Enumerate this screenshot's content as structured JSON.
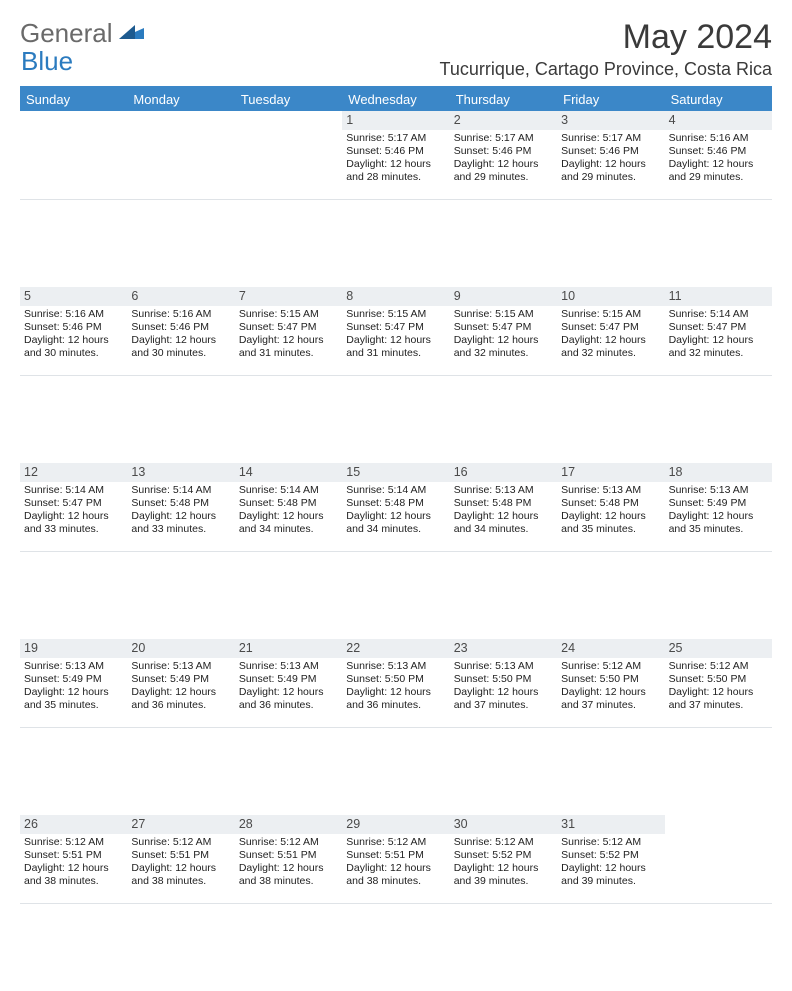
{
  "brand": {
    "part1": "General",
    "part2": "Blue"
  },
  "title": "May 2024",
  "location": "Tucurrique, Cartago Province, Costa Rica",
  "styling": {
    "header_bg": "#3b87c8",
    "header_fg": "#ffffff",
    "daynum_bg": "#eceff2",
    "page_bg": "#ffffff",
    "text_color": "#222222",
    "title_fontsize": 34,
    "location_fontsize": 18,
    "dayhead_fontsize": 13,
    "cell_fontsize": 10.5
  },
  "day_headers": [
    "Sunday",
    "Monday",
    "Tuesday",
    "Wednesday",
    "Thursday",
    "Friday",
    "Saturday"
  ],
  "weeks": [
    [
      {
        "n": "",
        "l1": "",
        "l2": "",
        "l3": "",
        "l4": ""
      },
      {
        "n": "",
        "l1": "",
        "l2": "",
        "l3": "",
        "l4": ""
      },
      {
        "n": "",
        "l1": "",
        "l2": "",
        "l3": "",
        "l4": ""
      },
      {
        "n": "1",
        "l1": "Sunrise: 5:17 AM",
        "l2": "Sunset: 5:46 PM",
        "l3": "Daylight: 12 hours",
        "l4": "and 28 minutes."
      },
      {
        "n": "2",
        "l1": "Sunrise: 5:17 AM",
        "l2": "Sunset: 5:46 PM",
        "l3": "Daylight: 12 hours",
        "l4": "and 29 minutes."
      },
      {
        "n": "3",
        "l1": "Sunrise: 5:17 AM",
        "l2": "Sunset: 5:46 PM",
        "l3": "Daylight: 12 hours",
        "l4": "and 29 minutes."
      },
      {
        "n": "4",
        "l1": "Sunrise: 5:16 AM",
        "l2": "Sunset: 5:46 PM",
        "l3": "Daylight: 12 hours",
        "l4": "and 29 minutes."
      }
    ],
    [
      {
        "n": "5",
        "l1": "Sunrise: 5:16 AM",
        "l2": "Sunset: 5:46 PM",
        "l3": "Daylight: 12 hours",
        "l4": "and 30 minutes."
      },
      {
        "n": "6",
        "l1": "Sunrise: 5:16 AM",
        "l2": "Sunset: 5:46 PM",
        "l3": "Daylight: 12 hours",
        "l4": "and 30 minutes."
      },
      {
        "n": "7",
        "l1": "Sunrise: 5:15 AM",
        "l2": "Sunset: 5:47 PM",
        "l3": "Daylight: 12 hours",
        "l4": "and 31 minutes."
      },
      {
        "n": "8",
        "l1": "Sunrise: 5:15 AM",
        "l2": "Sunset: 5:47 PM",
        "l3": "Daylight: 12 hours",
        "l4": "and 31 minutes."
      },
      {
        "n": "9",
        "l1": "Sunrise: 5:15 AM",
        "l2": "Sunset: 5:47 PM",
        "l3": "Daylight: 12 hours",
        "l4": "and 32 minutes."
      },
      {
        "n": "10",
        "l1": "Sunrise: 5:15 AM",
        "l2": "Sunset: 5:47 PM",
        "l3": "Daylight: 12 hours",
        "l4": "and 32 minutes."
      },
      {
        "n": "11",
        "l1": "Sunrise: 5:14 AM",
        "l2": "Sunset: 5:47 PM",
        "l3": "Daylight: 12 hours",
        "l4": "and 32 minutes."
      }
    ],
    [
      {
        "n": "12",
        "l1": "Sunrise: 5:14 AM",
        "l2": "Sunset: 5:47 PM",
        "l3": "Daylight: 12 hours",
        "l4": "and 33 minutes."
      },
      {
        "n": "13",
        "l1": "Sunrise: 5:14 AM",
        "l2": "Sunset: 5:48 PM",
        "l3": "Daylight: 12 hours",
        "l4": "and 33 minutes."
      },
      {
        "n": "14",
        "l1": "Sunrise: 5:14 AM",
        "l2": "Sunset: 5:48 PM",
        "l3": "Daylight: 12 hours",
        "l4": "and 34 minutes."
      },
      {
        "n": "15",
        "l1": "Sunrise: 5:14 AM",
        "l2": "Sunset: 5:48 PM",
        "l3": "Daylight: 12 hours",
        "l4": "and 34 minutes."
      },
      {
        "n": "16",
        "l1": "Sunrise: 5:13 AM",
        "l2": "Sunset: 5:48 PM",
        "l3": "Daylight: 12 hours",
        "l4": "and 34 minutes."
      },
      {
        "n": "17",
        "l1": "Sunrise: 5:13 AM",
        "l2": "Sunset: 5:48 PM",
        "l3": "Daylight: 12 hours",
        "l4": "and 35 minutes."
      },
      {
        "n": "18",
        "l1": "Sunrise: 5:13 AM",
        "l2": "Sunset: 5:49 PM",
        "l3": "Daylight: 12 hours",
        "l4": "and 35 minutes."
      }
    ],
    [
      {
        "n": "19",
        "l1": "Sunrise: 5:13 AM",
        "l2": "Sunset: 5:49 PM",
        "l3": "Daylight: 12 hours",
        "l4": "and 35 minutes."
      },
      {
        "n": "20",
        "l1": "Sunrise: 5:13 AM",
        "l2": "Sunset: 5:49 PM",
        "l3": "Daylight: 12 hours",
        "l4": "and 36 minutes."
      },
      {
        "n": "21",
        "l1": "Sunrise: 5:13 AM",
        "l2": "Sunset: 5:49 PM",
        "l3": "Daylight: 12 hours",
        "l4": "and 36 minutes."
      },
      {
        "n": "22",
        "l1": "Sunrise: 5:13 AM",
        "l2": "Sunset: 5:50 PM",
        "l3": "Daylight: 12 hours",
        "l4": "and 36 minutes."
      },
      {
        "n": "23",
        "l1": "Sunrise: 5:13 AM",
        "l2": "Sunset: 5:50 PM",
        "l3": "Daylight: 12 hours",
        "l4": "and 37 minutes."
      },
      {
        "n": "24",
        "l1": "Sunrise: 5:12 AM",
        "l2": "Sunset: 5:50 PM",
        "l3": "Daylight: 12 hours",
        "l4": "and 37 minutes."
      },
      {
        "n": "25",
        "l1": "Sunrise: 5:12 AM",
        "l2": "Sunset: 5:50 PM",
        "l3": "Daylight: 12 hours",
        "l4": "and 37 minutes."
      }
    ],
    [
      {
        "n": "26",
        "l1": "Sunrise: 5:12 AM",
        "l2": "Sunset: 5:51 PM",
        "l3": "Daylight: 12 hours",
        "l4": "and 38 minutes."
      },
      {
        "n": "27",
        "l1": "Sunrise: 5:12 AM",
        "l2": "Sunset: 5:51 PM",
        "l3": "Daylight: 12 hours",
        "l4": "and 38 minutes."
      },
      {
        "n": "28",
        "l1": "Sunrise: 5:12 AM",
        "l2": "Sunset: 5:51 PM",
        "l3": "Daylight: 12 hours",
        "l4": "and 38 minutes."
      },
      {
        "n": "29",
        "l1": "Sunrise: 5:12 AM",
        "l2": "Sunset: 5:51 PM",
        "l3": "Daylight: 12 hours",
        "l4": "and 38 minutes."
      },
      {
        "n": "30",
        "l1": "Sunrise: 5:12 AM",
        "l2": "Sunset: 5:52 PM",
        "l3": "Daylight: 12 hours",
        "l4": "and 39 minutes."
      },
      {
        "n": "31",
        "l1": "Sunrise: 5:12 AM",
        "l2": "Sunset: 5:52 PM",
        "l3": "Daylight: 12 hours",
        "l4": "and 39 minutes."
      },
      {
        "n": "",
        "l1": "",
        "l2": "",
        "l3": "",
        "l4": ""
      }
    ]
  ]
}
